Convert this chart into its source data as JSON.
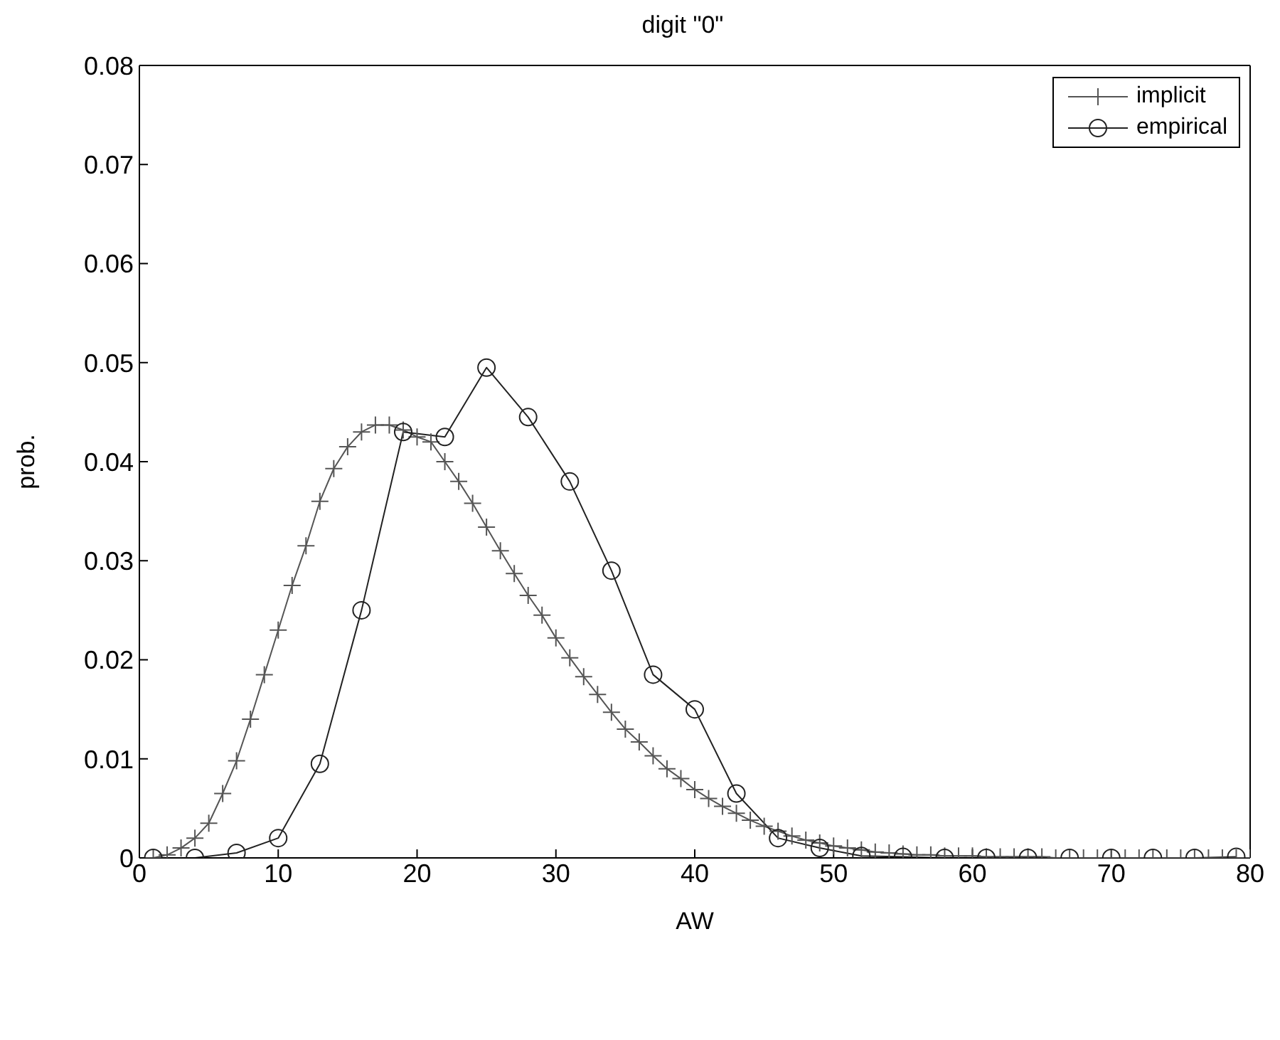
{
  "chart_data": {
    "type": "line",
    "title": "digit \"0\"",
    "xlabel": "AW",
    "ylabel": "prob.",
    "xlim": [
      0,
      80
    ],
    "xticks": [
      0,
      10,
      20,
      30,
      40,
      50,
      60,
      70,
      80
    ],
    "ylim": [
      0,
      0.08
    ],
    "yticks": [
      0,
      0.01,
      0.02,
      0.03,
      0.04,
      0.05,
      0.06,
      0.07,
      0.08
    ],
    "legend": "top right",
    "grid": false,
    "series": [
      {
        "name": "implicit",
        "color": "#555555",
        "marker": "cross",
        "x": [
          1,
          2,
          3,
          4,
          5,
          6,
          7,
          8,
          9,
          10,
          11,
          12,
          13,
          14,
          15,
          16,
          17,
          18,
          19,
          20,
          21,
          22,
          23,
          24,
          25,
          26,
          27,
          28,
          29,
          30,
          31,
          32,
          33,
          34,
          35,
          36,
          37,
          38,
          39,
          40,
          41,
          42,
          43,
          44,
          45,
          46,
          47,
          48,
          49,
          50,
          51,
          52,
          53,
          54,
          55,
          56,
          57,
          58,
          59,
          60,
          61,
          62,
          63,
          64,
          65,
          66,
          67,
          68,
          69,
          70,
          71,
          72,
          73,
          74,
          75,
          76,
          77,
          78,
          79,
          80
        ],
        "values": [
          0,
          0.0003,
          0.001,
          0.002,
          0.0035,
          0.0065,
          0.0098,
          0.014,
          0.0185,
          0.023,
          0.0275,
          0.0315,
          0.036,
          0.0393,
          0.0415,
          0.043,
          0.0437,
          0.0437,
          0.0432,
          0.0425,
          0.042,
          0.04,
          0.038,
          0.0358,
          0.0334,
          0.031,
          0.0287,
          0.0265,
          0.0245,
          0.0222,
          0.0202,
          0.0183,
          0.0165,
          0.0147,
          0.013,
          0.0117,
          0.0103,
          0.009,
          0.008,
          0.0069,
          0.006,
          0.0052,
          0.0045,
          0.0038,
          0.0032,
          0.0027,
          0.0022,
          0.0018,
          0.0015,
          0.0012,
          0.001,
          0.0008,
          0.0006,
          0.0005,
          0.0004,
          0.0003,
          0.0003,
          0.0002,
          0.0002,
          0.0002,
          0.0001,
          0.0001,
          0.0001,
          0.0001,
          0.0001,
          0,
          0,
          0,
          0,
          0,
          0,
          0,
          0,
          0,
          0,
          0,
          0,
          0,
          0,
          0
        ]
      },
      {
        "name": "empirical",
        "color": "#222222",
        "marker": "circle",
        "x": [
          1,
          4,
          7,
          10,
          13,
          16,
          19,
          22,
          25,
          28,
          31,
          34,
          37,
          40,
          43,
          46,
          49,
          52,
          55,
          58,
          61,
          64,
          67,
          70,
          73,
          76,
          79
        ],
        "values": [
          0,
          0,
          0.0005,
          0.002,
          0.0095,
          0.025,
          0.043,
          0.0425,
          0.0495,
          0.0445,
          0.038,
          0.029,
          0.0185,
          0.015,
          0.0065,
          0.002,
          0.001,
          0.0002,
          0.0001,
          0,
          0,
          0,
          0,
          0,
          0,
          0,
          0.0001
        ]
      }
    ]
  }
}
